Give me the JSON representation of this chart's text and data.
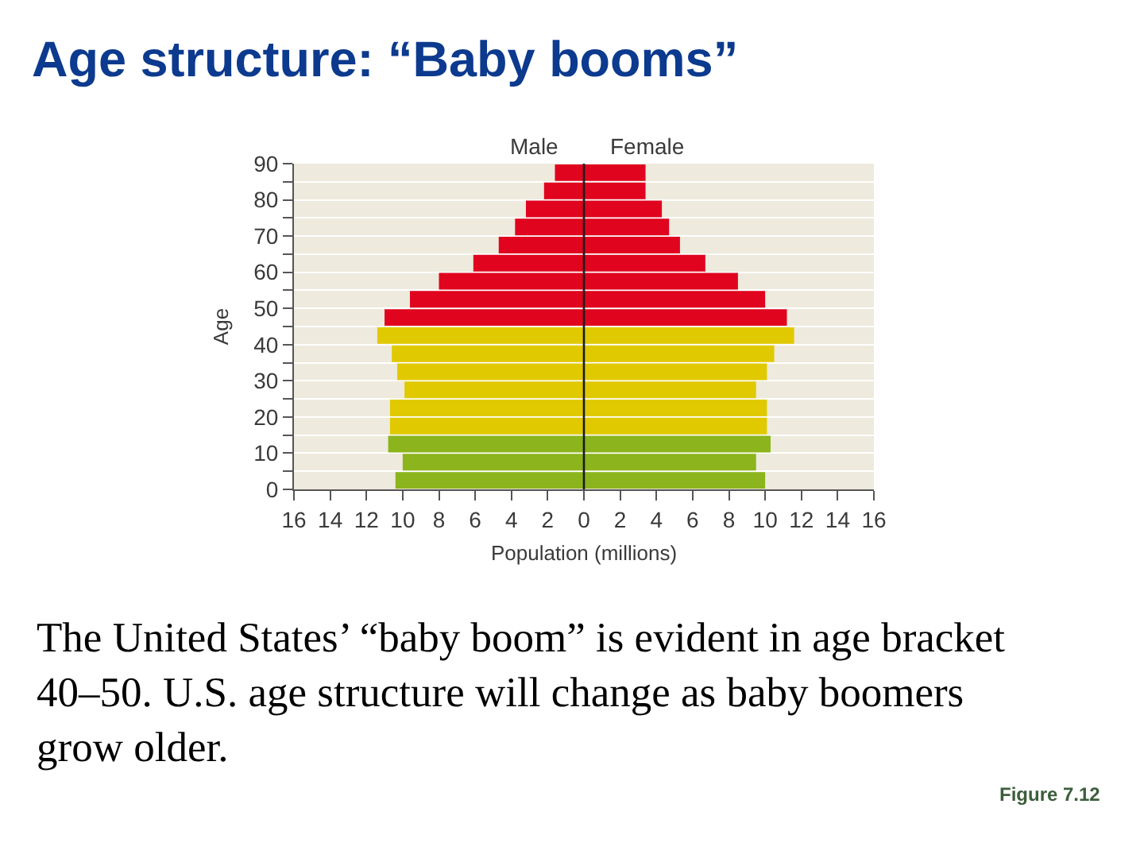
{
  "chart_data": {
    "type": "bar",
    "orientation": "horizontal",
    "stacked": true,
    "title": "Age structure: “Baby booms”",
    "xlabel": "Population (millions)",
    "ylabel": "Age",
    "x": [
      2.5,
      7.5,
      12.5,
      17.5,
      22.5,
      27.5,
      32.5,
      37.5,
      42.5,
      47.5,
      52.5,
      57.5,
      62.5,
      67.5,
      72.5,
      77.5,
      82.5,
      87.5
    ],
    "series": [
      {
        "name": "Male",
        "colors": [
          "#8cb41c",
          "#8cb41c",
          "#8cb41c",
          "#e1c900",
          "#e1c900",
          "#e1c900",
          "#e1c900",
          "#e1c900",
          "#e1c900",
          "#e0041f",
          "#e0041f",
          "#e0041f",
          "#e0041f",
          "#e0041f",
          "#e0041f",
          "#e0041f",
          "#e0041f",
          "#e0041f"
        ],
        "values": [
          -10.4,
          -10.0,
          -10.8,
          -10.7,
          -10.7,
          -9.9,
          -10.3,
          -10.6,
          -11.4,
          -11.0,
          -9.6,
          -8.0,
          -6.1,
          -4.7,
          -3.8,
          -3.2,
          -2.2,
          -1.6
        ]
      },
      {
        "name": "Female",
        "colors": [
          "#8cb41c",
          "#8cb41c",
          "#8cb41c",
          "#e1c900",
          "#e1c900",
          "#e1c900",
          "#e1c900",
          "#e1c900",
          "#e1c900",
          "#e0041f",
          "#e0041f",
          "#e0041f",
          "#e0041f",
          "#e0041f",
          "#e0041f",
          "#e0041f",
          "#e0041f",
          "#e0041f"
        ],
        "values": [
          10.0,
          9.5,
          10.3,
          10.1,
          10.1,
          9.5,
          10.1,
          10.5,
          11.6,
          11.2,
          10.0,
          8.5,
          6.7,
          5.3,
          4.7,
          4.3,
          3.4,
          3.4
        ]
      }
    ],
    "xlim": [
      -16,
      16
    ],
    "xticks": [
      {
        "value": -16,
        "label": "16"
      },
      {
        "value": -14,
        "label": "14"
      },
      {
        "value": -12,
        "label": "12"
      },
      {
        "value": -10,
        "label": "10"
      },
      {
        "value": -8,
        "label": "8"
      },
      {
        "value": -6,
        "label": "6"
      },
      {
        "value": -4,
        "label": "4"
      },
      {
        "value": -2,
        "label": "2"
      },
      0,
      2,
      4,
      6,
      8,
      10,
      12,
      14,
      16
    ],
    "ylim": [
      0,
      90
    ],
    "yticks": [
      0,
      {
        "value": 5,
        "label": null
      },
      10,
      {
        "value": 15,
        "label": null
      },
      20,
      {
        "value": 25,
        "label": null
      },
      30,
      {
        "value": 35,
        "label": null
      },
      40,
      {
        "value": 45,
        "label": null
      },
      50,
      {
        "value": 55,
        "label": null
      },
      60,
      {
        "value": 65,
        "label": null
      },
      70,
      {
        "value": 75,
        "label": null
      },
      80,
      {
        "value": 85,
        "label": null
      },
      90
    ],
    "grid": "y",
    "ref_lines": [
      {
        "axis": "x",
        "value": 0,
        "color": "#1a1a1a"
      }
    ],
    "annotations": [
      "The United States’ “baby boom” is evident in age bracket 40–50. U.S. age structure will change as baby boomers grow older.",
      "Figure 7.12"
    ]
  }
}
